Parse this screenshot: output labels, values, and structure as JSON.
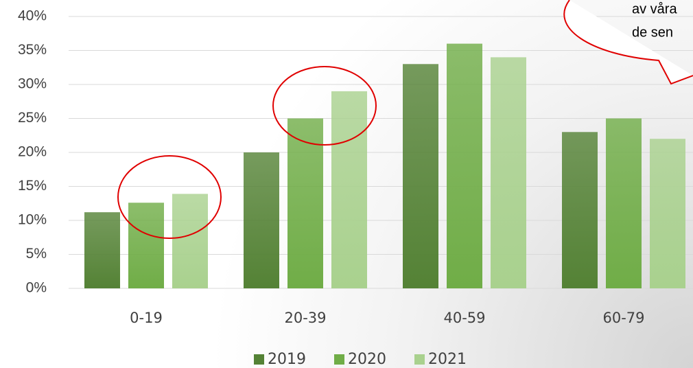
{
  "chart_data": {
    "type": "bar",
    "categories": [
      "0-19",
      "20-39",
      "40-59",
      "60-79"
    ],
    "series": [
      {
        "name": "2019",
        "color": "#548235",
        "values": [
          11.2,
          20,
          33,
          23
        ]
      },
      {
        "name": "2020",
        "color": "#70ad47",
        "values": [
          12.6,
          25,
          36,
          25
        ]
      },
      {
        "name": "2021",
        "color": "#a9d18e",
        "values": [
          13.9,
          29,
          34,
          22
        ]
      }
    ],
    "ylim": [
      0,
      40
    ],
    "yticks": [
      {
        "value": 0,
        "label": "0%"
      },
      {
        "value": 5,
        "label": "5%"
      },
      {
        "value": 10,
        "label": "10%"
      },
      {
        "value": 15,
        "label": "15%"
      },
      {
        "value": 20,
        "label": "20%"
      },
      {
        "value": 25,
        "label": "25%"
      },
      {
        "value": 30,
        "label": "30%"
      },
      {
        "value": 35,
        "label": "35%"
      },
      {
        "value": 40,
        "label": "40%"
      }
    ],
    "grid": true,
    "legend": "bottom",
    "annotations": [
      "av våra",
      "de sen"
    ]
  }
}
